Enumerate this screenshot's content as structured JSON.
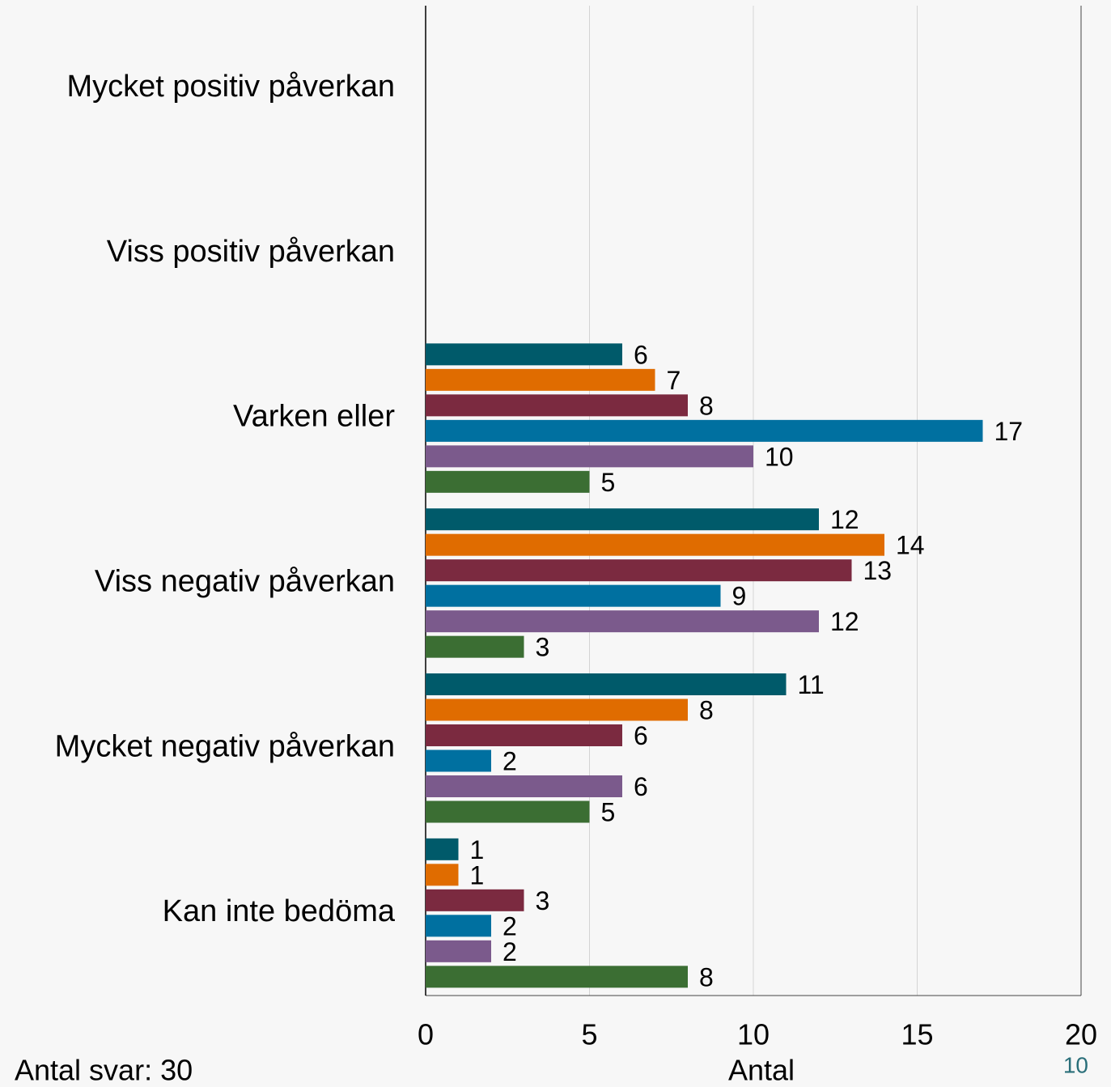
{
  "chart_data": {
    "type": "hbar",
    "categories": [
      "Mycket positiv påverkan",
      "Viss positiv påverkan",
      "Varken eller",
      "Viss negativ påverkan",
      "Mycket negativ påverkan",
      "Kan inte bedöma"
    ],
    "series": [
      {
        "color": "#005a6a",
        "values": [
          null,
          null,
          6,
          12,
          11,
          1
        ]
      },
      {
        "color": "#e06c00",
        "values": [
          null,
          null,
          7,
          14,
          8,
          1
        ]
      },
      {
        "color": "#7b2a40",
        "values": [
          null,
          null,
          8,
          13,
          6,
          3
        ]
      },
      {
        "color": "#0070a0",
        "values": [
          null,
          null,
          17,
          9,
          2,
          2
        ]
      },
      {
        "color": "#7b5a8c",
        "values": [
          null,
          null,
          10,
          12,
          6,
          2
        ]
      },
      {
        "color": "#3b6e33",
        "values": [
          null,
          null,
          5,
          3,
          5,
          8
        ]
      }
    ],
    "xlim": [
      0,
      20
    ],
    "xticks": [
      0,
      5,
      10,
      15,
      20
    ],
    "grid": true,
    "xlabel": "Antal",
    "footnote": "Antal svar: 30",
    "page_number": "10"
  }
}
